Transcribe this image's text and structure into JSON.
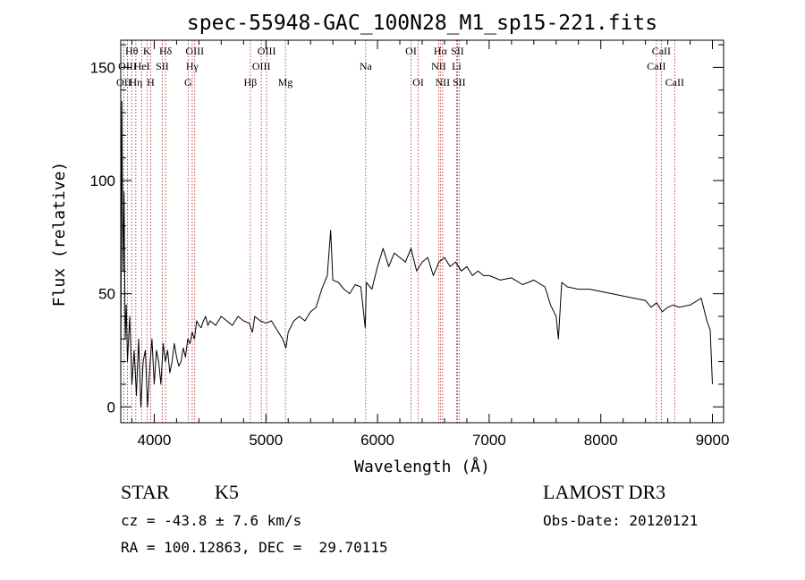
{
  "chart_data": {
    "type": "line",
    "title": "spec-55948-GAC_100N28_M1_sp15-221.fits",
    "xlabel": "Wavelength (Å)",
    "ylabel": "Flux (relative)",
    "xlim": [
      3700,
      9100
    ],
    "ylim": [
      -7,
      162
    ],
    "xticks": [
      4000,
      5000,
      6000,
      7000,
      8000,
      9000
    ],
    "yticks": [
      0,
      50,
      100,
      150
    ],
    "series": [
      {
        "x": [
          3700,
          3710,
          3720,
          3730,
          3740,
          3750,
          3760,
          3780,
          3800,
          3820,
          3840,
          3860,
          3880,
          3900,
          3920,
          3940,
          3960,
          3980,
          4000,
          4020,
          4040,
          4060,
          4080,
          4100,
          4120,
          4140,
          4160,
          4180,
          4200,
          4220,
          4240,
          4260,
          4280,
          4300,
          4320,
          4340,
          4360,
          4380,
          4400,
          4420,
          4440,
          4460,
          4480,
          4500,
          4550,
          4600,
          4650,
          4700,
          4750,
          4800,
          4850,
          4880,
          4900,
          4950,
          5000,
          5050,
          5100,
          5150,
          5180,
          5200,
          5250,
          5300,
          5350,
          5400,
          5450,
          5500,
          5550,
          5580,
          5600,
          5650,
          5700,
          5750,
          5800,
          5850,
          5890,
          5900,
          5950,
          6000,
          6050,
          6100,
          6150,
          6200,
          6250,
          6300,
          6350,
          6400,
          6450,
          6500,
          6550,
          6600,
          6650,
          6700,
          6750,
          6800,
          6850,
          6900,
          6950,
          7000,
          7100,
          7200,
          7300,
          7400,
          7500,
          7550,
          7600,
          7620,
          7650,
          7700,
          7800,
          7900,
          8000,
          8100,
          8200,
          8300,
          8400,
          8450,
          8500,
          8550,
          8600,
          8650,
          8700,
          8800,
          8900,
          8950,
          8980,
          9000
        ],
        "y": [
          10,
          135,
          60,
          95,
          30,
          45,
          20,
          40,
          10,
          25,
          5,
          30,
          0,
          20,
          25,
          0,
          18,
          30,
          10,
          25,
          20,
          10,
          28,
          20,
          25,
          15,
          20,
          28,
          22,
          18,
          20,
          26,
          22,
          30,
          28,
          33,
          30,
          38,
          36,
          35,
          38,
          40,
          36,
          38,
          36,
          40,
          38,
          36,
          40,
          38,
          37,
          33,
          40,
          38,
          37,
          38,
          34,
          30,
          26,
          33,
          38,
          40,
          38,
          42,
          44,
          52,
          58,
          78,
          56,
          55,
          52,
          50,
          54,
          53,
          35,
          55,
          52,
          62,
          70,
          62,
          68,
          66,
          64,
          70,
          60,
          64,
          66,
          58,
          64,
          66,
          62,
          64,
          60,
          62,
          58,
          60,
          58,
          58,
          56,
          57,
          54,
          56,
          53,
          45,
          40,
          30,
          55,
          53,
          52,
          52,
          51,
          50,
          49,
          48,
          47,
          44,
          46,
          42,
          44,
          45,
          44,
          45,
          48,
          38,
          34,
          10
        ]
      }
    ],
    "line_marks": [
      {
        "name": "OII",
        "w": 3727,
        "row": 3
      },
      {
        "name": "Hθ",
        "w": 3798,
        "row": 1
      },
      {
        "name": "OIII",
        "w": 3760,
        "row": 2
      },
      {
        "name": "Hη",
        "w": 3835,
        "row": 3
      },
      {
        "name": "HeI",
        "w": 3889,
        "row": 2
      },
      {
        "name": "K",
        "w": 3934,
        "row": 1
      },
      {
        "name": "H",
        "w": 3968,
        "row": 3
      },
      {
        "name": "SII",
        "w": 4072,
        "row": 2
      },
      {
        "name": "Hδ",
        "w": 4102,
        "row": 1
      },
      {
        "name": "OIII",
        "w": 4363,
        "row": 1
      },
      {
        "name": "Hγ",
        "w": 4340,
        "row": 2
      },
      {
        "name": "G",
        "w": 4304,
        "row": 3
      },
      {
        "name": "Hβ",
        "w": 4861,
        "row": 3
      },
      {
        "name": "OIII",
        "w": 4959,
        "row": 2
      },
      {
        "name": "OIII",
        "w": 5007,
        "row": 1
      },
      {
        "name": "Mg",
        "w": 5175,
        "row": 3
      },
      {
        "name": "Na",
        "w": 5894,
        "row": 2
      },
      {
        "name": "OI",
        "w": 6300,
        "row": 1
      },
      {
        "name": "OI",
        "w": 6364,
        "row": 3
      },
      {
        "name": "NII",
        "w": 6548,
        "row": 2
      },
      {
        "name": "Hα",
        "w": 6563,
        "row": 1
      },
      {
        "name": "NII",
        "w": 6583,
        "row": 3
      },
      {
        "name": "SII",
        "w": 6716,
        "row": 1
      },
      {
        "name": "Li",
        "w": 6708,
        "row": 2
      },
      {
        "name": "SII",
        "w": 6731,
        "row": 3
      },
      {
        "name": "CaII",
        "w": 8498,
        "row": 2
      },
      {
        "name": "CaII",
        "w": 8542,
        "row": 1
      },
      {
        "name": "CaII",
        "w": 8662,
        "row": 3
      }
    ]
  },
  "info": {
    "class": "STAR",
    "subclass": "K5",
    "survey": "LAMOST DR3",
    "cz": "cz = -43.8 ± 7.6 km/s",
    "obs_date": "Obs-Date: 20120121",
    "coords": "RA = 100.12863, DEC =  29.70115"
  },
  "colors": {
    "spectrum": "#000000",
    "line_marker": "#b02020",
    "axes": "#000000"
  }
}
